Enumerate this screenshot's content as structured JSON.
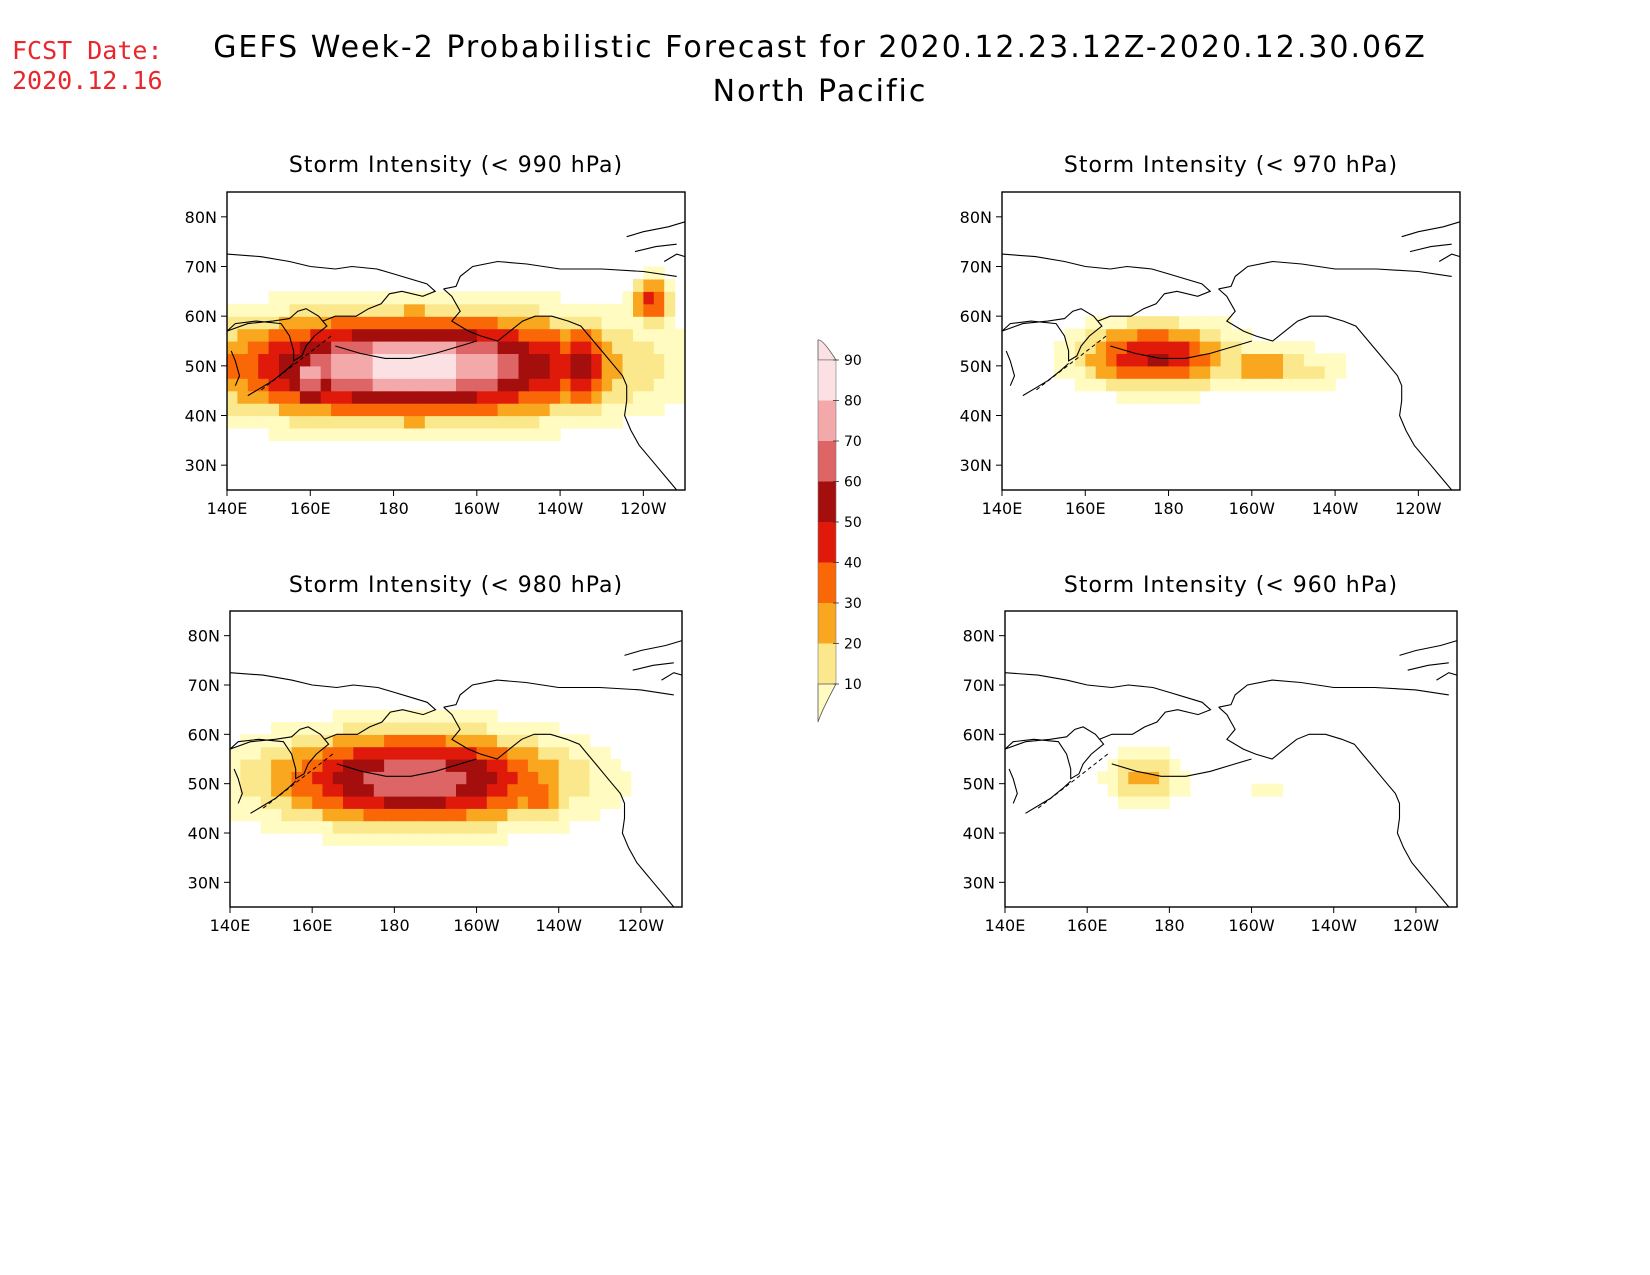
{
  "fcst_label": "FCST Date:",
  "fcst_date": "2020.12.16",
  "title_line1": "GEFS Week-2 Probabilistic Forecast for 2020.12.23.12Z-2020.12.30.06Z",
  "title_line2": "North Pacific",
  "lat_labels": [
    "80N",
    "70N",
    "60N",
    "50N",
    "40N",
    "30N"
  ],
  "lon_labels": [
    "140E",
    "160E",
    "180",
    "160W",
    "140W",
    "120W"
  ],
  "colorbar": {
    "levels": [
      10,
      20,
      30,
      40,
      50,
      60,
      70,
      80,
      90
    ],
    "colors": [
      "#fffbc1",
      "#fbe88c",
      "#f9a71f",
      "#f96706",
      "#e01a0b",
      "#a40e0c",
      "#dd6566",
      "#f3a9aa",
      "#fbe1e3"
    ],
    "labels": [
      "10",
      "20",
      "30",
      "40",
      "50",
      "60",
      "70",
      "80",
      "90"
    ]
  },
  "panels": [
    {
      "title": "Storm Intensity (< 990 hPa)",
      "blobs": [
        {
          "lon": -175,
          "lat": 50,
          "rlon": 50,
          "rlat": 11,
          "peak": 95
        },
        {
          "lon": 160,
          "lat": 48,
          "rlon": 8,
          "rlat": 8,
          "peak": 85
        },
        {
          "lon": -135,
          "lat": 50,
          "rlon": 8,
          "rlat": 9,
          "peak": 70
        },
        {
          "lon": -118,
          "lat": 63,
          "rlon": 5,
          "rlat": 5,
          "peak": 55
        }
      ]
    },
    {
      "title": "Storm Intensity (< 970 hPa)",
      "blobs": [
        {
          "lon": 177,
          "lat": 52,
          "rlon": 20,
          "rlat": 7,
          "peak": 62
        },
        {
          "lon": -158,
          "lat": 50,
          "rlon": 17,
          "rlat": 5,
          "peak": 35
        },
        {
          "lon": -148,
          "lat": 49,
          "rlon": 12,
          "rlat": 5,
          "peak": 25
        }
      ]
    },
    {
      "title": "Storm Intensity (< 980 hPa)",
      "blobs": [
        {
          "lon": -175,
          "lat": 51,
          "rlon": 38,
          "rlat": 10,
          "peak": 80
        },
        {
          "lon": -145,
          "lat": 48,
          "rlon": 10,
          "rlat": 7,
          "peak": 45
        },
        {
          "lon": 152,
          "lat": 48,
          "rlon": 6,
          "rlat": 6,
          "peak": 25
        }
      ]
    },
    {
      "title": "Storm Intensity (< 960 hPa)",
      "blobs": [
        {
          "lon": 174,
          "lat": 51,
          "rlon": 10,
          "rlat": 6,
          "peak": 35
        },
        {
          "lon": -157,
          "lat": 49,
          "rlon": 6,
          "rlat": 3,
          "peak": 15
        }
      ]
    }
  ]
}
